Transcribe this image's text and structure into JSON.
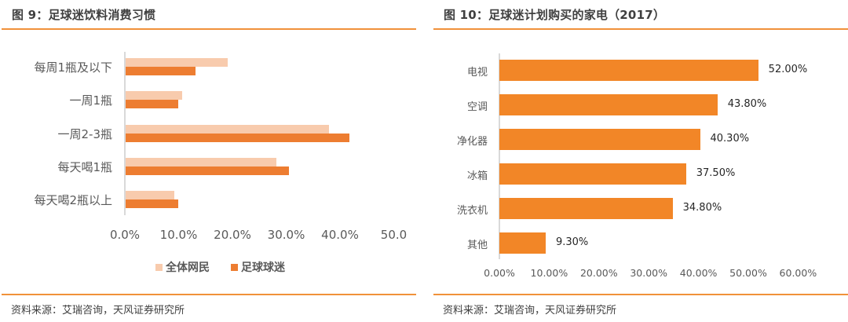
{
  "figure9": {
    "title": "图 9：足球迷饮料消费习惯",
    "source": "资料来源：艾瑞咨询，天风证券研究所",
    "colors": {
      "all_netizens": "#f8cbad",
      "football_fans": "#ed7d31",
      "rule": "#f0913a"
    },
    "legend": [
      {
        "label": "全体网民",
        "color": "#f8cbad"
      },
      {
        "label": "足球球迷",
        "color": "#ed7d31"
      }
    ],
    "xticks": [
      "0.0%",
      "10.0%",
      "20.0%",
      "30.0%",
      "40.0%",
      "50.0"
    ]
  },
  "figure10": {
    "title": "图 10：足球迷计划购买的家电（2017）",
    "source": "资料来源：艾瑞咨询，天风证券研究所",
    "colors": {
      "bar": "#f28627",
      "rule": "#f0913a"
    },
    "xticks": [
      "0.00%",
      "10.00%",
      "20.00%",
      "30.00%",
      "40.00%",
      "50.00%",
      "60.00%"
    ],
    "value_labels": [
      "52.00%",
      "43.80%",
      "40.30%",
      "37.50%",
      "34.80%",
      "9.30%"
    ]
  },
  "chart_data": [
    {
      "type": "bar",
      "orientation": "horizontal",
      "title": "图 9：足球迷饮料消费习惯",
      "categories": [
        "每周1瓶及以下",
        "一周1瓶",
        "一周2-3瓶",
        "每天喝1瓶",
        "每天喝2瓶以上"
      ],
      "series": [
        {
          "name": "全体网民",
          "values": [
            19.0,
            10.5,
            37.8,
            28.0,
            9.0
          ]
        },
        {
          "name": "足球球迷",
          "values": [
            13.0,
            9.8,
            41.6,
            30.4,
            9.8
          ]
        }
      ],
      "xlabel": "",
      "ylabel": "",
      "xlim": [
        0,
        50
      ],
      "tick_labels": [
        "0.0%",
        "10.0%",
        "20.0%",
        "30.0%",
        "40.0%",
        "50.0"
      ],
      "grid": false,
      "legend_position": "bottom"
    },
    {
      "type": "bar",
      "orientation": "horizontal",
      "title": "图 10：足球迷计划购买的家电（2017）",
      "categories": [
        "电视",
        "空调",
        "净化器",
        "冰箱",
        "洗衣机",
        "其他"
      ],
      "values": [
        52.0,
        43.8,
        40.3,
        37.5,
        34.8,
        9.3
      ],
      "data_labels": [
        "52.00%",
        "43.80%",
        "40.30%",
        "37.50%",
        "34.80%",
        "9.30%"
      ],
      "xlabel": "",
      "ylabel": "",
      "xlim": [
        0,
        60
      ],
      "tick_labels": [
        "0.00%",
        "10.00%",
        "20.00%",
        "30.00%",
        "40.00%",
        "50.00%",
        "60.00%"
      ],
      "grid": false,
      "legend_position": "none"
    }
  ]
}
